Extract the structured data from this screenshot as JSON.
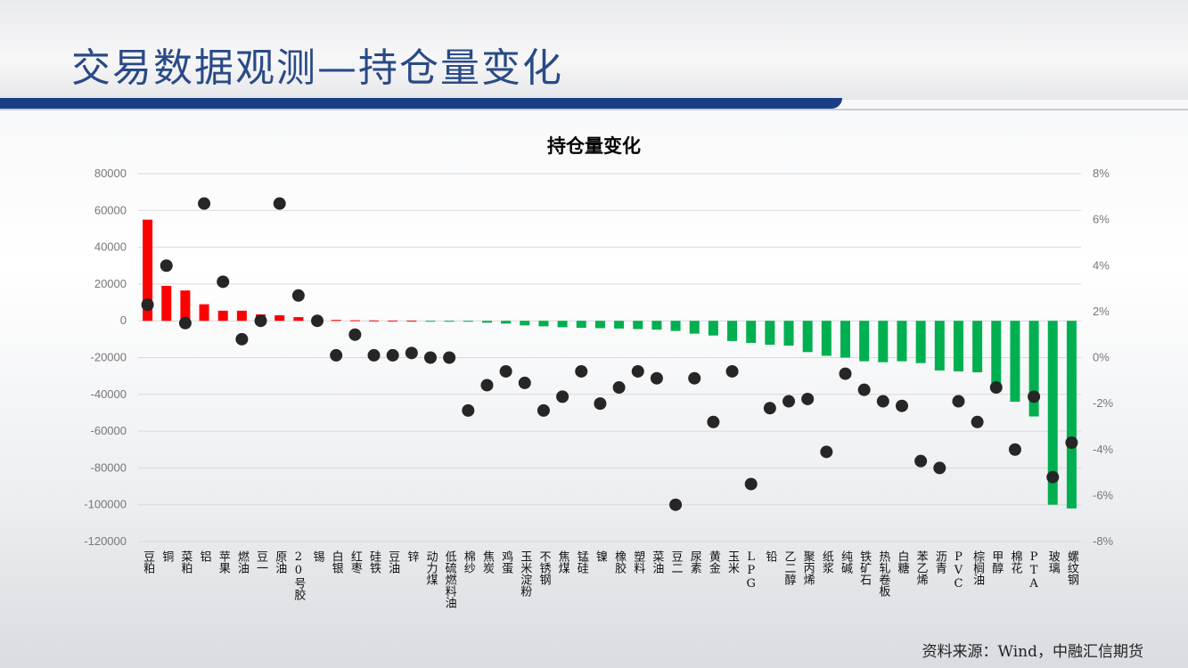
{
  "header": {
    "title": "交易数据观测—持仓量变化"
  },
  "source": "资料来源：Wind，中融汇信期货",
  "colors": {
    "positive": "#ff0000",
    "negative": "#00b050",
    "dot": "#262626",
    "accent": "#1b3f86"
  },
  "chart_data": {
    "type": "bar",
    "title": "持仓量变化",
    "categories": [
      "豆粕",
      "铜",
      "菜粕",
      "铝",
      "苹果",
      "燃油",
      "豆一",
      "原油",
      "20号胶",
      "锡",
      "白银",
      "红枣",
      "硅铁",
      "豆油",
      "锌",
      "动力煤",
      "低硫燃料油",
      "棉纱",
      "焦炭",
      "鸡蛋",
      "玉米淀粉",
      "不锈钢",
      "焦煤",
      "锰硅",
      "镍",
      "橡胶",
      "塑料",
      "菜油",
      "豆二",
      "尿素",
      "黄金",
      "玉米",
      "LPG",
      "铅",
      "乙二醇",
      "聚丙烯",
      "纸浆",
      "纯碱",
      "铁矿石",
      "热轧卷板",
      "白糖",
      "苯乙烯",
      "沥青",
      "PVC",
      "棕榈油",
      "甲醇",
      "棉花",
      "PTA",
      "玻璃",
      "螺纹钢"
    ],
    "series": [
      {
        "type": "bar",
        "axis": "left",
        "values": [
          55000,
          19000,
          16500,
          9000,
          5500,
          5500,
          3500,
          3000,
          2000,
          1000,
          500,
          300,
          200,
          150,
          100,
          -200,
          -300,
          -500,
          -1000,
          -1500,
          -2500,
          -3000,
          -3500,
          -3800,
          -4000,
          -4200,
          -4500,
          -4800,
          -5500,
          -7000,
          -8000,
          -11000,
          -12000,
          -13000,
          -13500,
          -17000,
          -19000,
          -20000,
          -22000,
          -22500,
          -22000,
          -23000,
          -27000,
          -27500,
          -28000,
          -36000,
          -44000,
          -52000,
          -100000,
          -102000
        ]
      },
      {
        "type": "scatter",
        "axis": "right",
        "values": [
          2.3,
          4.0,
          1.5,
          6.7,
          3.3,
          0.8,
          1.6,
          6.7,
          2.7,
          1.6,
          0.1,
          1.0,
          0.1,
          0.1,
          0.2,
          0.0,
          0.0,
          -2.3,
          -1.2,
          -0.6,
          -1.1,
          -2.3,
          -1.7,
          -0.6,
          -2.0,
          -1.3,
          -0.6,
          -0.9,
          -6.4,
          -0.9,
          -2.8,
          -0.6,
          -5.5,
          -2.2,
          -1.9,
          -1.8,
          -4.1,
          -0.7,
          -1.4,
          -1.9,
          -2.1,
          -4.5,
          -4.8,
          -1.9,
          -2.8,
          -1.3,
          -4.0,
          -1.7,
          -5.2,
          -3.7
        ]
      }
    ],
    "y_left": {
      "ylim": [
        -120000,
        80000
      ],
      "ticks": [
        "80000",
        "60000",
        "40000",
        "20000",
        "0",
        "-20000",
        "-40000",
        "-60000",
        "-80000",
        "-100000",
        "-120000"
      ]
    },
    "y_right": {
      "ylim": [
        -8,
        8
      ],
      "ticks": [
        "8%",
        "6%",
        "4%",
        "2%",
        "0%",
        "-2%",
        "-4%",
        "-6%",
        "-8%"
      ]
    },
    "grid": true,
    "legend": false
  }
}
